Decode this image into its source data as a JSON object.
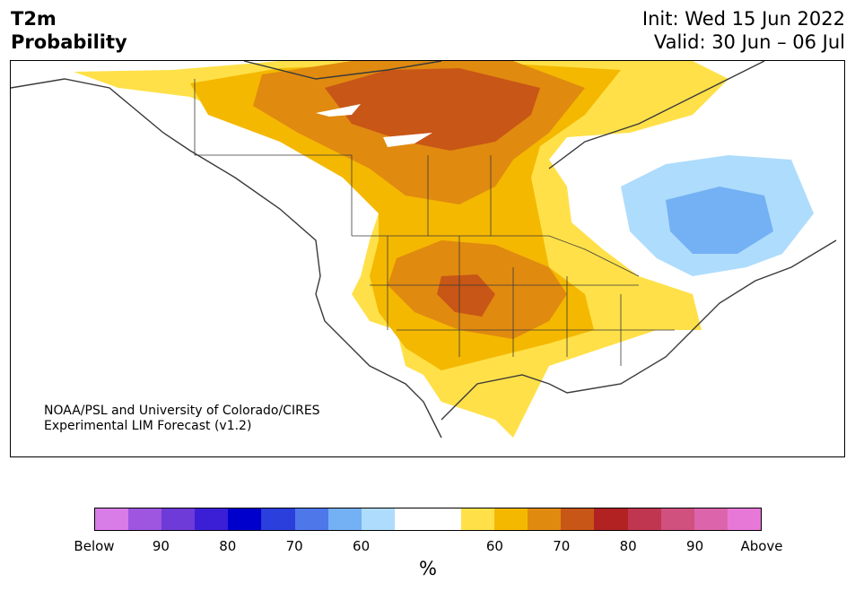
{
  "title": {
    "left_line1": "T2m",
    "left_line2": "Probability",
    "init": "Init: Wed 15 Jun 2022",
    "valid": "Valid: 30 Jun – 06 Jul"
  },
  "credit": {
    "line1": "NOAA/PSL and University of Colorado/CIRES",
    "line2": "Experimental LIM Forecast (v1.2)"
  },
  "colorbar": {
    "colors": [
      "#d87ce8",
      "#9e55e0",
      "#6e3ad8",
      "#3a1fd6",
      "#0000cd",
      "#2a3fdc",
      "#4e78ea",
      "#74b0f4",
      "#aedcfc",
      "#ffffff",
      "#ffffff",
      "#ffe048",
      "#f4b800",
      "#e08a10",
      "#c85616",
      "#b22222",
      "#c03650",
      "#d0507e",
      "#dc64aa",
      "#e878d8"
    ],
    "ticks": [
      "Below",
      "90",
      "80",
      "70",
      "60",
      "60",
      "70",
      "80",
      "90",
      "Above"
    ],
    "unit": "%"
  },
  "map": {
    "colors": {
      "land_edge": "#3a3a3a",
      "p60": "#ffe048",
      "p65": "#f4b800",
      "p70": "#e08a10",
      "p75": "#c85616",
      "b60": "#aedcfc",
      "b65": "#74b0f4"
    }
  }
}
